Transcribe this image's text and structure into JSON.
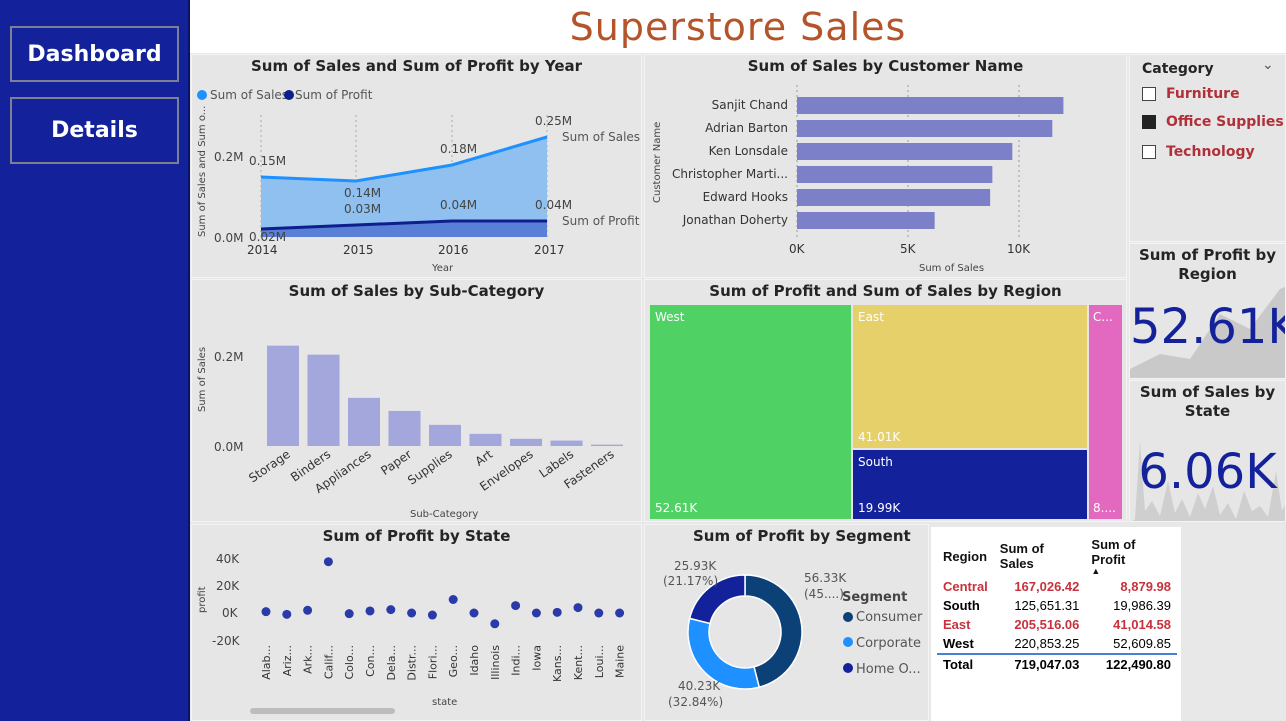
{
  "app": {
    "title": "Superstore Sales",
    "nav": [
      {
        "label": "Dashboard"
      },
      {
        "label": "Details"
      }
    ]
  },
  "colors": {
    "sidebar": "#13229b",
    "title": "#b4542a",
    "sales": "#1e90ff",
    "profit": "#0d1f8c",
    "bar": "#7b80c9",
    "bar_light": "#a3a7db",
    "west": "#4fd163",
    "east": "#e6d06a",
    "south": "#13229b",
    "central": "#e369c0"
  },
  "year_chart": {
    "title": "Sum of Sales and Sum of Profit by Year",
    "legend": [
      "Sum of Sales",
      "Sum of Profit"
    ],
    "ylabel": "Sum of Sales and Sum o...",
    "xlabel": "Year",
    "yticks": [
      "0.2M",
      "0.0M"
    ],
    "xticks": [
      "2014",
      "2015",
      "2016",
      "2017"
    ],
    "sales_labels": [
      "0.15M",
      "0.14M",
      "0.18M",
      "0.25M"
    ],
    "profit_labels": [
      "0.02M",
      "0.03M",
      "0.04M",
      "0.04M"
    ],
    "end_labels": [
      "Sum of Sales",
      "Sum of Profit"
    ]
  },
  "customer_chart": {
    "title": "Sum of Sales by Customer Name",
    "ylabel": "Customer Name",
    "xlabel": "Sum of Sales",
    "xticks": [
      "0K",
      "5K",
      "10K"
    ]
  },
  "subcat_chart": {
    "title": "Sum of Sales by Sub-Category",
    "ylabel": "Sum of Sales",
    "xlabel": "Sub-Category",
    "yticks": [
      "0.2M",
      "0.0M"
    ]
  },
  "region_tree": {
    "title": "Sum of Profit and Sum of Sales by Region",
    "tiles": [
      {
        "name": "West",
        "value": "52.61K"
      },
      {
        "name": "East",
        "value": "41.01K"
      },
      {
        "name": "South",
        "value": "19.99K"
      },
      {
        "name": "C...",
        "value": "8...."
      }
    ]
  },
  "category_slicer": {
    "title": "Category",
    "items": [
      {
        "label": "Furniture",
        "checked": false
      },
      {
        "label": "Office Supplies",
        "checked": true
      },
      {
        "label": "Technology",
        "checked": false
      }
    ]
  },
  "card_profit": {
    "title": "Sum of Profit by Region",
    "value": "52.61K"
  },
  "card_sales": {
    "title": "Sum of Sales by State",
    "value": "6.06K"
  },
  "state_chart": {
    "title": "Sum of Profit by State",
    "ylabel": "profit",
    "xlabel": "state",
    "yticks": [
      "40K",
      "20K",
      "0K",
      "-20K"
    ]
  },
  "segment_chart": {
    "title": "Sum of Profit by Segment",
    "legend_title": "Segment",
    "legend": [
      "Consumer",
      "Corporate",
      "Home O..."
    ],
    "labels": [
      {
        "value": "56.33K",
        "pct": "(45....)"
      },
      {
        "value": "40.23K",
        "pct": "(32.84%)"
      },
      {
        "value": "25.93K",
        "pct": "(21.17%)"
      }
    ]
  },
  "region_table": {
    "headers": [
      "Region",
      "Sum of Sales",
      "Sum of Profit"
    ],
    "rows": [
      {
        "region": "Central",
        "sales": "167,026.42",
        "profit": "8,879.98",
        "highlight": true
      },
      {
        "region": "South",
        "sales": "125,651.31",
        "profit": "19,986.39",
        "highlight": false
      },
      {
        "region": "East",
        "sales": "205,516.06",
        "profit": "41,014.58",
        "highlight": true
      },
      {
        "region": "West",
        "sales": "220,853.25",
        "profit": "52,609.85",
        "highlight": false
      }
    ],
    "total": {
      "label": "Total",
      "sales": "719,047.03",
      "profit": "122,490.80"
    }
  },
  "chart_data": [
    {
      "type": "area",
      "title": "Sum of Sales and Sum of Profit by Year",
      "x": [
        2014,
        2015,
        2016,
        2017
      ],
      "series": [
        {
          "name": "Sum of Sales",
          "values": [
            0.15,
            0.14,
            0.18,
            0.25
          ]
        },
        {
          "name": "Sum of Profit",
          "values": [
            0.02,
            0.03,
            0.04,
            0.04
          ]
        }
      ],
      "ylim": [
        0,
        0.25
      ],
      "xlabel": "Year"
    },
    {
      "type": "bar",
      "title": "Sum of Sales by Customer Name",
      "categories": [
        "Sanjit Chand",
        "Adrian Barton",
        "Ken Lonsdale",
        "Christopher Marti...",
        "Edward Hooks",
        "Jonathan Doherty"
      ],
      "values": [
        12000,
        11500,
        9700,
        8800,
        8700,
        6200
      ],
      "xlim": [
        0,
        14000
      ]
    },
    {
      "type": "bar",
      "title": "Sum of Sales by Sub-Category",
      "categories": [
        "Storage",
        "Binders",
        "Appliances",
        "Paper",
        "Supplies",
        "Art",
        "Envelopes",
        "Labels",
        "Fasteners"
      ],
      "values": [
        0.223,
        0.203,
        0.107,
        0.078,
        0.047,
        0.027,
        0.016,
        0.012,
        0.003
      ],
      "ylim": [
        0,
        0.25
      ]
    },
    {
      "type": "scatter",
      "title": "Sum of Profit by State",
      "categories": [
        "Alab...",
        "Ariz...",
        "Ark...",
        "Calif...",
        "Colo...",
        "Con...",
        "Dela...",
        "Distr...",
        "Flori...",
        "Geo...",
        "Idaho",
        "Illinois",
        "Indi...",
        "Iowa",
        "Kans...",
        "Kent...",
        "Loui...",
        "Maine"
      ],
      "values": [
        1000,
        -1000,
        2000,
        38000,
        -500,
        1500,
        2500,
        0,
        -1500,
        10000,
        0,
        -8000,
        5500,
        0,
        500,
        4000,
        0,
        0
      ],
      "ylim": [
        -20000,
        40000
      ]
    },
    {
      "type": "pie",
      "title": "Sum of Profit by Segment",
      "categories": [
        "Consumer",
        "Corporate",
        "Home O..."
      ],
      "values": [
        56.33,
        40.23,
        25.93
      ]
    }
  ]
}
